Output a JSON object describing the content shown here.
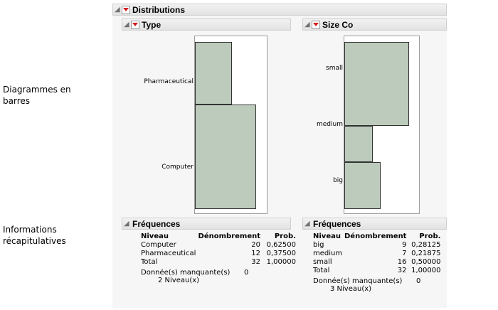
{
  "side_labels": {
    "charts": "Diagrammes en barres",
    "summary": "Informations récapitulatives"
  },
  "report": {
    "title": "Distributions",
    "type_panel": {
      "title": "Type",
      "categories": [
        "Pharmaceutical",
        "Computer"
      ]
    },
    "size_panel": {
      "title": "Size Co",
      "categories": [
        "small",
        "medium",
        "big"
      ]
    },
    "freq_type": {
      "title": "Fréquences",
      "headers": [
        "Niveau",
        "Dénombrement",
        "Prob."
      ],
      "rows": [
        [
          "Computer",
          "20",
          "0,62500"
        ],
        [
          "Pharmaceutical",
          "12",
          "0,37500"
        ],
        [
          "Total",
          "32",
          "1,00000"
        ]
      ],
      "missing_label": "Donnée(s) manquante(s)",
      "missing_value": "0",
      "levels": "2 Niveau(x)"
    },
    "freq_size": {
      "title": "Fréquences",
      "headers": [
        "Niveau",
        "Dénombrement",
        "Prob."
      ],
      "rows": [
        [
          "big",
          "9",
          "0,28125"
        ],
        [
          "medium",
          "7",
          "0,21875"
        ],
        [
          "small",
          "16",
          "0,50000"
        ],
        [
          "Total",
          "32",
          "1,00000"
        ]
      ],
      "missing_label": "Donnée(s) manquante(s)",
      "missing_value": "0",
      "levels": "3 Niveau(x)"
    }
  },
  "chart_data": [
    {
      "type": "bar",
      "orientation": "horizontal",
      "categories": [
        "Pharmaceutical",
        "Computer"
      ],
      "values": [
        12,
        20
      ]
    },
    {
      "type": "bar",
      "orientation": "horizontal",
      "categories": [
        "small",
        "medium",
        "big"
      ],
      "values": [
        16,
        7,
        9
      ]
    }
  ]
}
